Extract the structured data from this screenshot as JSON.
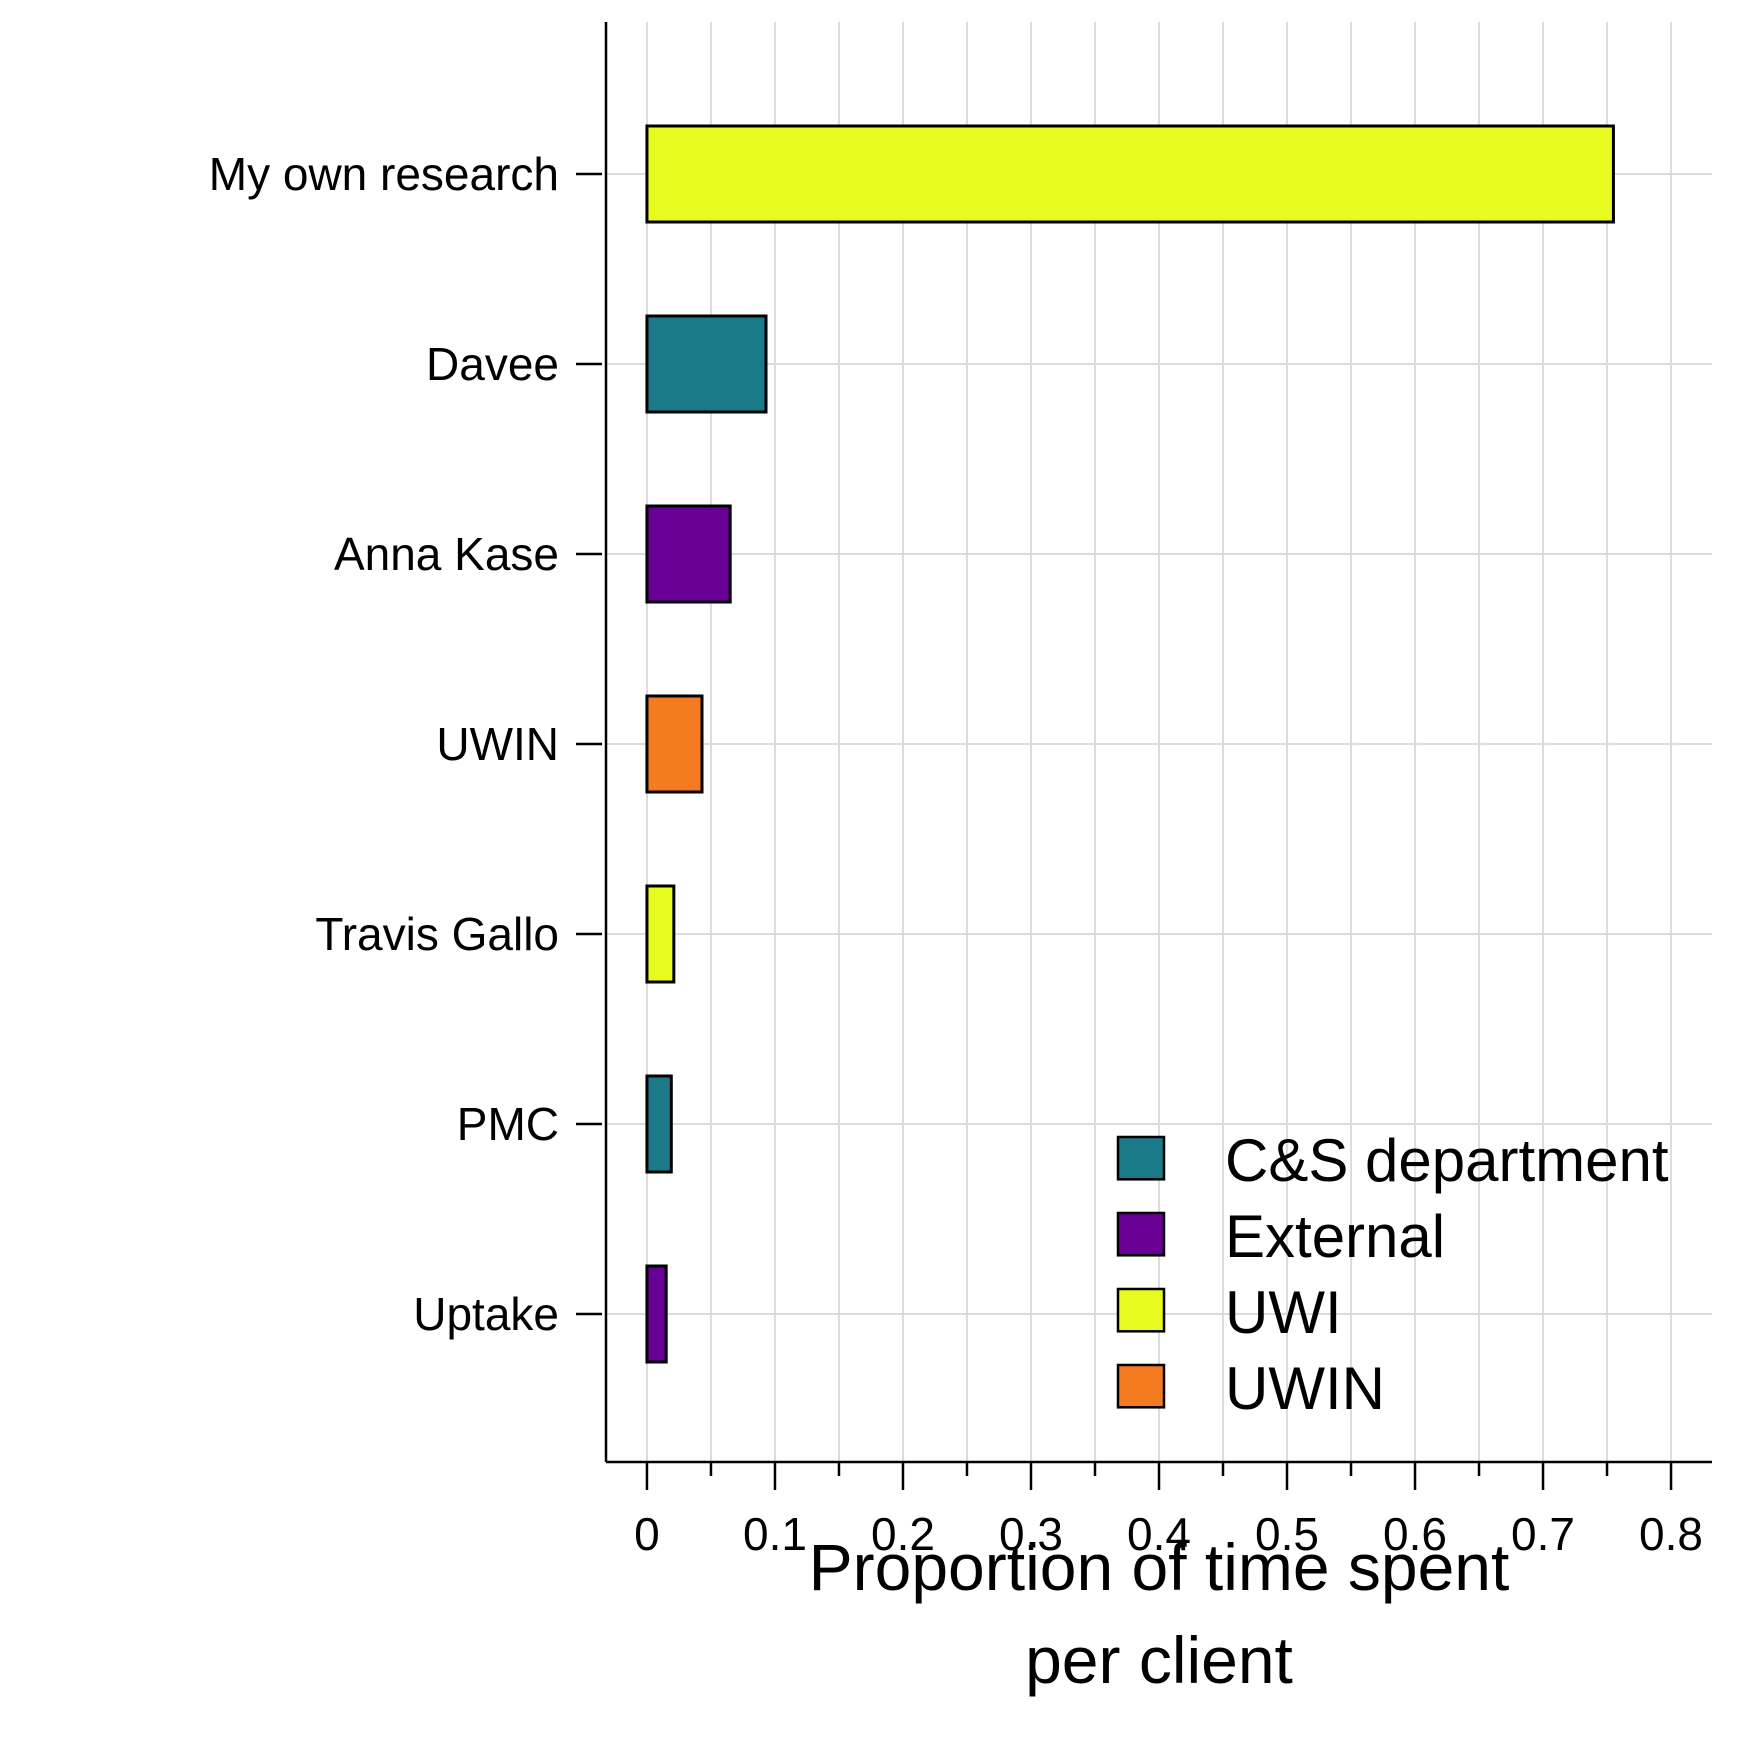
{
  "chart_data": {
    "type": "bar",
    "orientation": "horizontal",
    "categories": [
      "My own research",
      "Davee",
      "Anna Kase",
      "UWIN",
      "Travis Gallo",
      "PMC",
      "Uptake"
    ],
    "values": [
      0.755,
      0.093,
      0.065,
      0.043,
      0.021,
      0.019,
      0.015
    ],
    "bar_groups": [
      "UWI",
      "C&S department",
      "External",
      "UWIN",
      "UWI",
      "C&S department",
      "External"
    ],
    "title": "",
    "xlabel_lines": [
      "Proportion of time spent",
      "per client"
    ],
    "ylabel": "",
    "xlim": [
      -0.032,
      0.832
    ],
    "x_ticks": [
      "0",
      "0.1",
      "0.2",
      "0.3",
      "0.4",
      "0.5",
      "0.6",
      "0.7",
      "0.8"
    ],
    "grid": true,
    "legend_position": "bottom-right",
    "legend": [
      {
        "label": "C&S department",
        "color": "#1b7a87"
      },
      {
        "label": "External",
        "color": "#680096"
      },
      {
        "label": "UWI",
        "color": "#e8fb1f"
      },
      {
        "label": "UWIN",
        "color": "#f47b20"
      }
    ],
    "colors": {
      "grid": "#dcdcdc",
      "axis": "#000000",
      "bar_outline": "#000000"
    }
  }
}
